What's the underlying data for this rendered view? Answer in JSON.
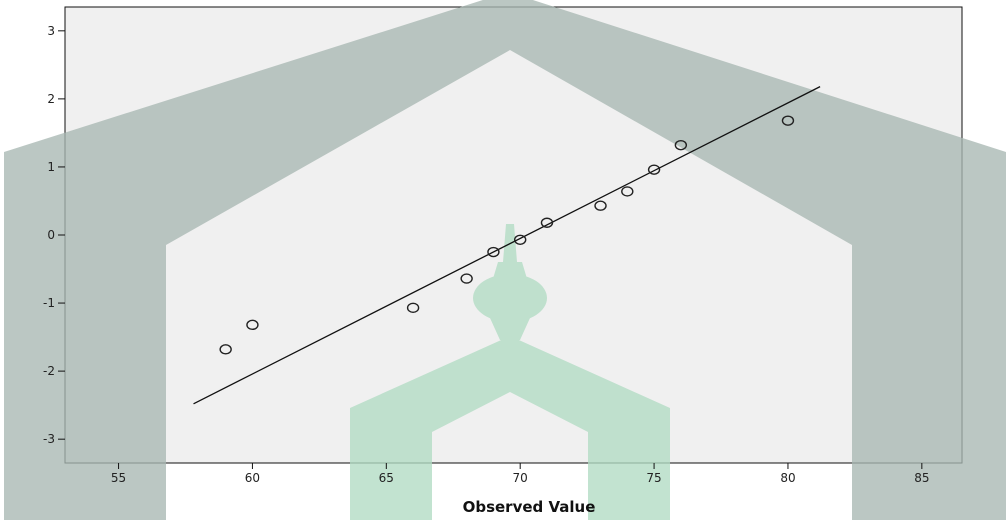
{
  "chart_data": {
    "type": "scatter",
    "title": "",
    "xlabel": "Observed Value",
    "ylabel": "",
    "xlim": [
      53,
      86.5
    ],
    "ylim": [
      -3.35,
      3.35
    ],
    "x_ticks": [
      55,
      60,
      65,
      70,
      75,
      80,
      85
    ],
    "y_ticks": [
      3,
      2,
      1,
      0,
      -1,
      -2,
      -3
    ],
    "grid": false,
    "legend": "none",
    "points": [
      {
        "x": 59,
        "y": -1.68
      },
      {
        "x": 60,
        "y": -1.32
      },
      {
        "x": 66,
        "y": -1.07
      },
      {
        "x": 68,
        "y": -0.64
      },
      {
        "x": 69,
        "y": -0.25
      },
      {
        "x": 70,
        "y": -0.07
      },
      {
        "x": 71,
        "y": 0.18
      },
      {
        "x": 73,
        "y": 0.43
      },
      {
        "x": 74,
        "y": 0.64
      },
      {
        "x": 75,
        "y": 0.96
      },
      {
        "x": 76,
        "y": 1.32
      },
      {
        "x": 80,
        "y": 1.68
      }
    ],
    "reference_line": {
      "x1": 57.8,
      "y1": -2.48,
      "x2": 81.2,
      "y2": 2.18
    },
    "colors": {
      "plot_background": "#f0f0f0",
      "watermark_gray": "#a8b7b2",
      "watermark_green": "#b2dcc4",
      "marker": "#222222",
      "line": "#111111"
    }
  }
}
